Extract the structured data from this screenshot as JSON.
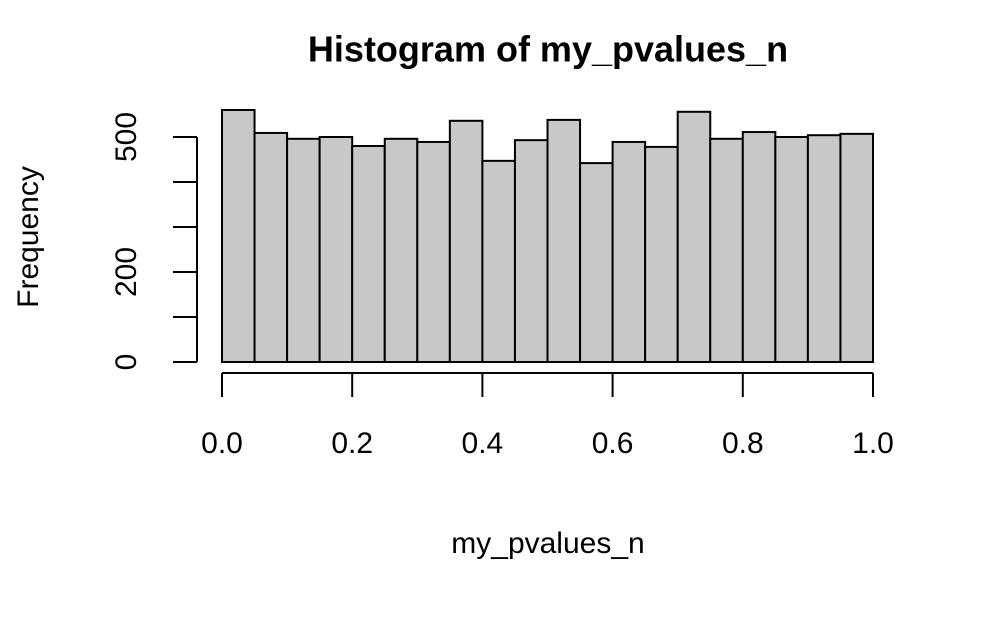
{
  "chart_data": {
    "type": "histogram",
    "title": "Histogram of my_pvalues_n",
    "xlabel": "my_pvalues_n",
    "ylabel": "Frequency",
    "bins": [
      0,
      0.05,
      0.1,
      0.15,
      0.2,
      0.25,
      0.3,
      0.35,
      0.4,
      0.45,
      0.5,
      0.55,
      0.6,
      0.65,
      0.7,
      0.75,
      0.8,
      0.85,
      0.9,
      0.95,
      1.0
    ],
    "values": [
      560,
      509,
      496,
      500,
      480,
      496,
      489,
      536,
      447,
      493,
      538,
      442,
      489,
      478,
      556,
      496,
      511,
      500,
      504,
      507
    ],
    "color": "#c8c8c8",
    "xlim": [
      0,
      1
    ],
    "xticks": [
      {
        "value": 0,
        "label": "0.0"
      },
      0.2,
      0.4,
      0.6,
      0.8,
      {
        "value": 1,
        "label": "1.0"
      }
    ],
    "ylim": [
      0,
      560
    ],
    "yticks": [
      0,
      {
        "value": 100
      },
      200,
      {
        "value": 300
      },
      {
        "value": 400
      },
      500
    ]
  }
}
